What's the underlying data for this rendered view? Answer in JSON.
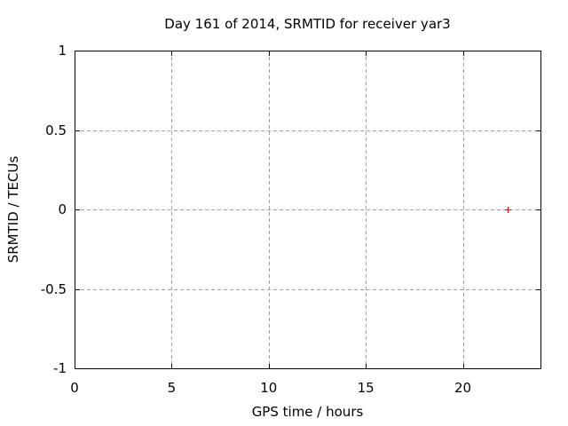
{
  "chart_data": {
    "type": "scatter",
    "title": "Day 161 of 2014, SRMTID for receiver yar3",
    "xlabel": "GPS time / hours",
    "ylabel": "SRMTID / TECUs",
    "xlim": [
      0,
      24
    ],
    "ylim": [
      -1,
      1
    ],
    "x_ticks": [
      "0",
      "5",
      "10",
      "15",
      "20"
    ],
    "x_tick_values": [
      0,
      5,
      10,
      15,
      20
    ],
    "y_ticks": [
      "-1",
      "-0.5",
      "0",
      "0.5",
      "1"
    ],
    "y_tick_values": [
      -1,
      -0.5,
      0,
      0.5,
      1
    ],
    "grid": true,
    "legend": "none",
    "series": [
      {
        "name": "SRMTID",
        "marker": "plus",
        "color": "#ff0000",
        "points": [
          {
            "x": 22.3,
            "y": 0.0
          }
        ]
      }
    ],
    "colors": {
      "background": "#ffffff",
      "axis": "#000000",
      "grid": "#a0a0a0",
      "text": "#000000",
      "marker": "#ff0000"
    }
  }
}
